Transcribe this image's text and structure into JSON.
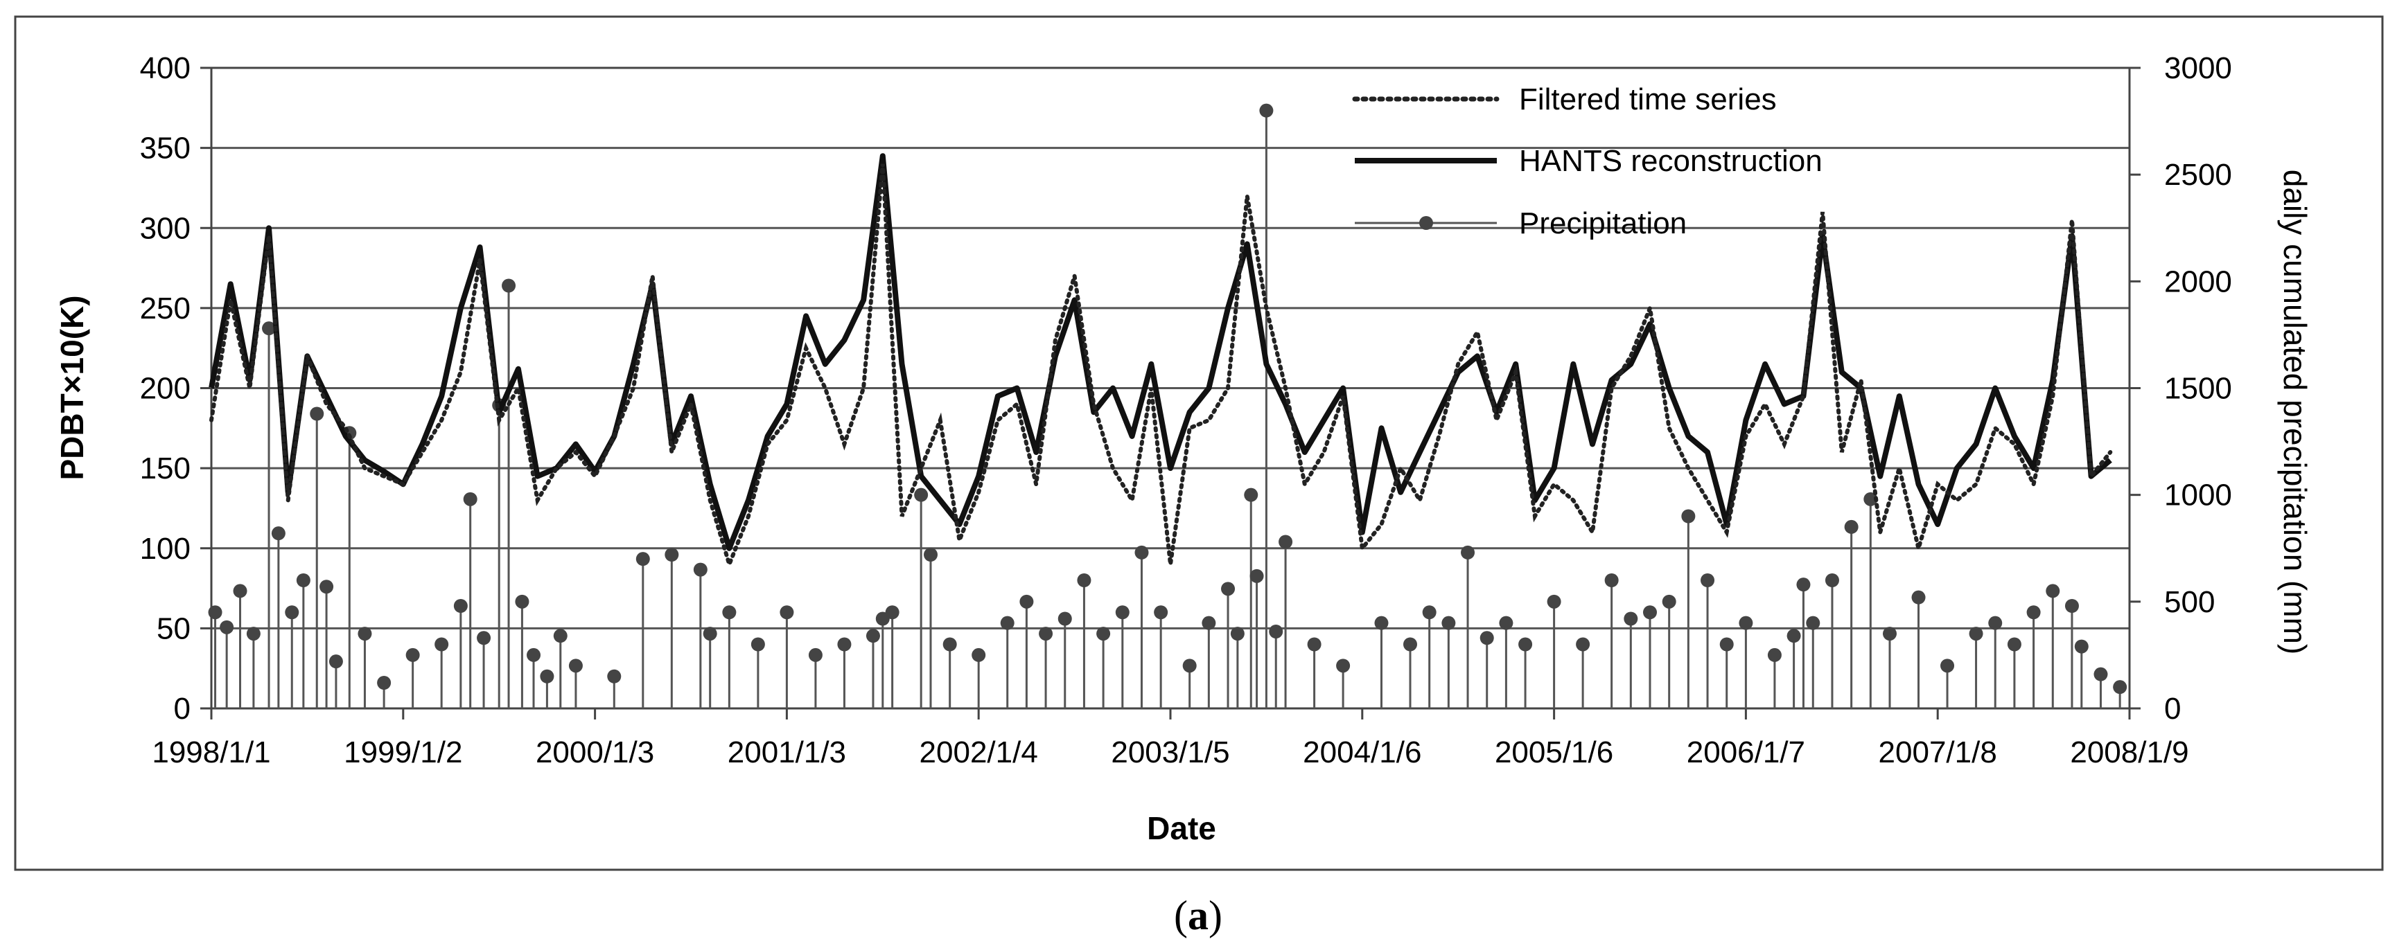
{
  "caption": {
    "open": "(",
    "letter": "a",
    "close": ")"
  },
  "chart_data": {
    "type": "line",
    "xlabel": "Date",
    "ylabel_left": "PDBT×10(K)",
    "ylabel_right": "daily cumulated precipitation (mm)",
    "x_tick_labels": [
      "1998/1/1",
      "1999/1/2",
      "2000/1/3",
      "2001/1/3",
      "2002/1/4",
      "2003/1/5",
      "2004/1/6",
      "2005/1/6",
      "2006/1/7",
      "2007/1/8",
      "2008/1/9"
    ],
    "ylim_left": [
      0,
      400
    ],
    "ylim_right": [
      0,
      3000
    ],
    "y_ticks_left": [
      0,
      50,
      100,
      150,
      200,
      250,
      300,
      350,
      400
    ],
    "y_ticks_right": [
      0,
      500,
      1000,
      1500,
      2000,
      2500,
      3000
    ],
    "grid": "horizontal",
    "legend_position": "top-center",
    "series": [
      {
        "name": "Filtered time series",
        "style": "dotted",
        "axis": "left",
        "x": [
          1998.0,
          1998.1,
          1998.2,
          1998.3,
          1998.4,
          1998.5,
          1998.6,
          1998.7,
          1998.8,
          1998.9,
          1999.0,
          1999.1,
          1999.2,
          1999.3,
          1999.4,
          1999.5,
          1999.6,
          1999.7,
          1999.8,
          1999.9,
          2000.0,
          2000.1,
          2000.2,
          2000.3,
          2000.4,
          2000.5,
          2000.6,
          2000.7,
          2000.8,
          2000.9,
          2001.0,
          2001.1,
          2001.2,
          2001.3,
          2001.4,
          2001.5,
          2001.6,
          2001.7,
          2001.8,
          2001.9,
          2002.0,
          2002.1,
          2002.2,
          2002.3,
          2002.4,
          2002.5,
          2002.6,
          2002.7,
          2002.8,
          2002.9,
          2003.0,
          2003.1,
          2003.2,
          2003.3,
          2003.4,
          2003.5,
          2003.6,
          2003.7,
          2003.8,
          2003.9,
          2004.0,
          2004.1,
          2004.2,
          2004.3,
          2004.4,
          2004.5,
          2004.6,
          2004.7,
          2004.8,
          2004.9,
          2005.0,
          2005.1,
          2005.2,
          2005.3,
          2005.4,
          2005.5,
          2005.6,
          2005.7,
          2005.8,
          2005.9,
          2006.0,
          2006.1,
          2006.2,
          2006.3,
          2006.4,
          2006.5,
          2006.6,
          2006.7,
          2006.8,
          2006.9,
          2007.0,
          2007.1,
          2007.2,
          2007.3,
          2007.4,
          2007.5,
          2007.6,
          2007.7,
          2007.8,
          2007.9
        ],
        "y": [
          180,
          255,
          200,
          295,
          130,
          220,
          190,
          175,
          150,
          145,
          140,
          160,
          180,
          210,
          280,
          180,
          200,
          130,
          150,
          160,
          145,
          170,
          200,
          270,
          160,
          190,
          130,
          90,
          120,
          165,
          180,
          225,
          200,
          165,
          200,
          340,
          120,
          150,
          180,
          105,
          135,
          180,
          190,
          140,
          230,
          270,
          190,
          150,
          130,
          200,
          90,
          175,
          180,
          200,
          320,
          250,
          200,
          140,
          160,
          195,
          100,
          115,
          150,
          130,
          170,
          215,
          235,
          180,
          210,
          120,
          140,
          130,
          110,
          200,
          220,
          250,
          175,
          150,
          130,
          110,
          170,
          190,
          165,
          195,
          310,
          160,
          205,
          110,
          150,
          100,
          140,
          130,
          140,
          175,
          165,
          140,
          195,
          305,
          145,
          160
        ]
      },
      {
        "name": "HANTS reconstruction",
        "style": "solid-thick",
        "axis": "left",
        "x": [
          1998.0,
          1998.1,
          1998.2,
          1998.3,
          1998.4,
          1998.5,
          1998.6,
          1998.7,
          1998.8,
          1998.9,
          1999.0,
          1999.1,
          1999.2,
          1999.3,
          1999.4,
          1999.5,
          1999.6,
          1999.7,
          1999.8,
          1999.9,
          2000.0,
          2000.1,
          2000.2,
          2000.3,
          2000.4,
          2000.5,
          2000.6,
          2000.7,
          2000.8,
          2000.9,
          2001.0,
          2001.1,
          2001.2,
          2001.3,
          2001.4,
          2001.5,
          2001.6,
          2001.7,
          2001.8,
          2001.9,
          2002.0,
          2002.1,
          2002.2,
          2002.3,
          2002.4,
          2002.5,
          2002.6,
          2002.7,
          2002.8,
          2002.9,
          2003.0,
          2003.1,
          2003.2,
          2003.3,
          2003.4,
          2003.5,
          2003.6,
          2003.7,
          2003.8,
          2003.9,
          2004.0,
          2004.1,
          2004.2,
          2004.3,
          2004.4,
          2004.5,
          2004.6,
          2004.7,
          2004.8,
          2004.9,
          2005.0,
          2005.1,
          2005.2,
          2005.3,
          2005.4,
          2005.5,
          2005.6,
          2005.7,
          2005.8,
          2005.9,
          2006.0,
          2006.1,
          2006.2,
          2006.3,
          2006.4,
          2006.5,
          2006.6,
          2006.7,
          2006.8,
          2006.9,
          2007.0,
          2007.1,
          2007.2,
          2007.3,
          2007.4,
          2007.5,
          2007.6,
          2007.7,
          2007.8,
          2007.9
        ],
        "y": [
          200,
          265,
          205,
          300,
          135,
          220,
          195,
          170,
          155,
          148,
          140,
          165,
          195,
          250,
          288,
          185,
          212,
          145,
          150,
          165,
          148,
          170,
          215,
          265,
          165,
          195,
          140,
          100,
          130,
          170,
          190,
          245,
          215,
          230,
          255,
          345,
          215,
          145,
          130,
          115,
          145,
          195,
          200,
          160,
          220,
          255,
          185,
          200,
          170,
          215,
          150,
          185,
          200,
          250,
          290,
          215,
          190,
          160,
          180,
          200,
          110,
          175,
          135,
          160,
          185,
          210,
          220,
          185,
          215,
          130,
          150,
          215,
          165,
          205,
          215,
          240,
          200,
          170,
          160,
          115,
          180,
          215,
          190,
          195,
          295,
          210,
          200,
          145,
          195,
          140,
          115,
          150,
          165,
          200,
          170,
          150,
          205,
          295,
          145,
          155
        ]
      },
      {
        "name": "Precipitation",
        "style": "stem-marker",
        "axis": "right",
        "x": [
          1998.02,
          1998.08,
          1998.15,
          1998.22,
          1998.3,
          1998.35,
          1998.42,
          1998.48,
          1998.55,
          1998.6,
          1998.65,
          1998.72,
          1998.8,
          1998.9,
          1999.05,
          1999.2,
          1999.3,
          1999.35,
          1999.42,
          1999.5,
          1999.55,
          1999.62,
          1999.68,
          1999.75,
          1999.82,
          1999.9,
          2000.1,
          2000.25,
          2000.4,
          2000.55,
          2000.6,
          2000.7,
          2000.85,
          2001.0,
          2001.15,
          2001.3,
          2001.45,
          2001.5,
          2001.55,
          2001.7,
          2001.75,
          2001.85,
          2002.0,
          2002.15,
          2002.25,
          2002.35,
          2002.45,
          2002.55,
          2002.65,
          2002.75,
          2002.85,
          2002.95,
          2003.1,
          2003.2,
          2003.3,
          2003.35,
          2003.42,
          2003.45,
          2003.5,
          2003.55,
          2003.6,
          2003.75,
          2003.9,
          2004.1,
          2004.25,
          2004.35,
          2004.45,
          2004.55,
          2004.65,
          2004.75,
          2004.85,
          2005.0,
          2005.15,
          2005.3,
          2005.4,
          2005.5,
          2005.6,
          2005.7,
          2005.8,
          2005.9,
          2006.0,
          2006.15,
          2006.25,
          2006.3,
          2006.35,
          2006.45,
          2006.55,
          2006.65,
          2006.75,
          2006.9,
          2007.05,
          2007.2,
          2007.3,
          2007.4,
          2007.5,
          2007.6,
          2007.7,
          2007.75,
          2007.85,
          2007.95
        ],
        "y": [
          450,
          380,
          550,
          350,
          1780,
          820,
          450,
          600,
          1380,
          570,
          220,
          1290,
          350,
          120,
          250,
          300,
          480,
          980,
          330,
          1420,
          1980,
          500,
          250,
          150,
          340,
          200,
          150,
          700,
          720,
          650,
          350,
          450,
          300,
          450,
          250,
          300,
          340,
          420,
          450,
          1000,
          720,
          300,
          250,
          400,
          500,
          350,
          420,
          600,
          350,
          450,
          730,
          450,
          200,
          400,
          560,
          350,
          1000,
          620,
          2800,
          360,
          780,
          300,
          200,
          400,
          300,
          450,
          400,
          730,
          330,
          400,
          300,
          500,
          300,
          600,
          420,
          450,
          500,
          900,
          600,
          300,
          400,
          250,
          340,
          580,
          400,
          600,
          850,
          980,
          350,
          520,
          200,
          350,
          400,
          300,
          450,
          550,
          480,
          290,
          160,
          100
        ]
      }
    ]
  }
}
